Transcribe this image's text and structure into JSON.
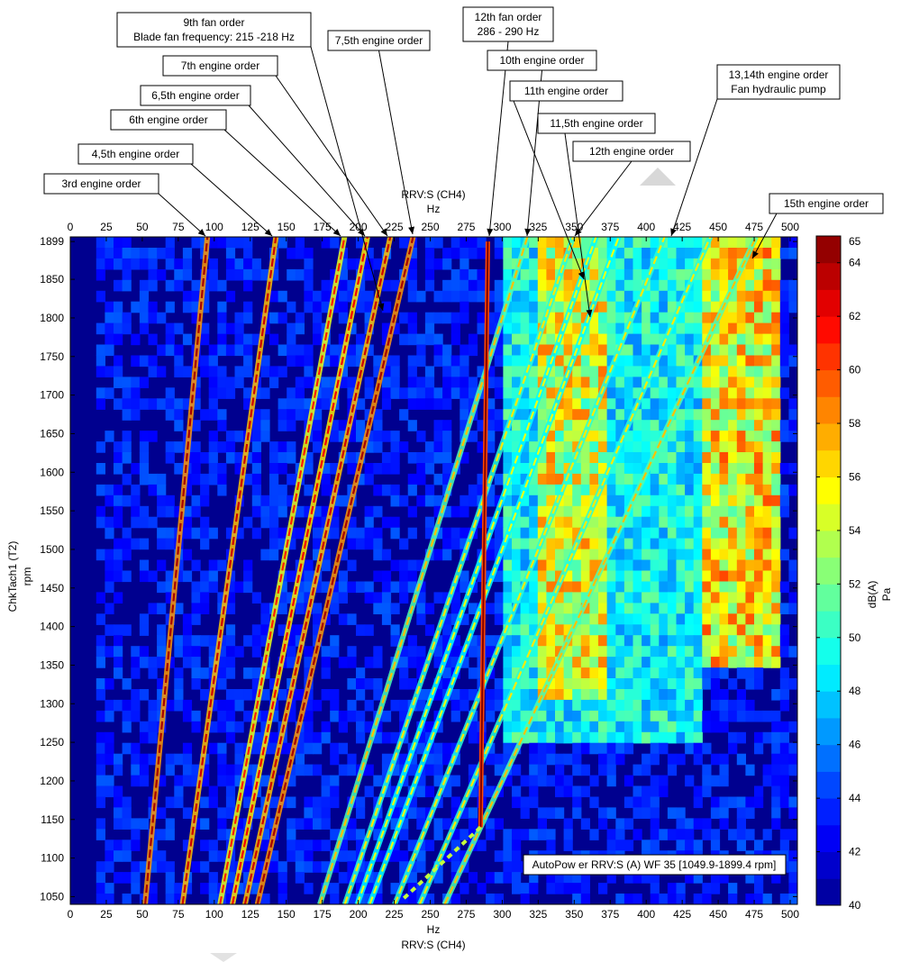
{
  "chart_data": {
    "type": "heatmap",
    "title": "",
    "x_axis": {
      "label": "Hz",
      "channel": "RRV:S (CH4)",
      "range": [
        0,
        505
      ],
      "ticks": [
        0,
        25,
        50,
        75,
        100,
        125,
        150,
        175,
        200,
        225,
        250,
        275,
        300,
        325,
        350,
        375,
        400,
        425,
        450,
        475,
        500
      ]
    },
    "y_axis": {
      "label_line1": "ChkTach1 (T2)",
      "label_line2": "rpm",
      "range": [
        1040,
        1905
      ],
      "ticks": [
        1050,
        1100,
        1150,
        1200,
        1250,
        1300,
        1350,
        1400,
        1450,
        1500,
        1550,
        1600,
        1650,
        1700,
        1750,
        1800,
        1850,
        1899
      ]
    },
    "colorbar": {
      "label": "dB(A)",
      "unit": "Pa",
      "range": [
        40,
        65
      ],
      "ticks": [
        40,
        42,
        44,
        46,
        48,
        50,
        52,
        54,
        56,
        58,
        60,
        62,
        64,
        65
      ]
    },
    "legend_text": "AutoPow er RRV:S (A) WF 35 [1049.9-1899.4 rpm]",
    "orders": [
      {
        "order": 3,
        "peak_db": 64
      },
      {
        "order": 4.5,
        "peak_db": 63
      },
      {
        "order": 6,
        "peak_db": 61
      },
      {
        "order": 6.5,
        "peak_db": 62
      },
      {
        "order": 7,
        "peak_db": 63
      },
      {
        "order": 7.5,
        "peak_db": 64
      },
      {
        "order": 10,
        "peak_db": 57
      },
      {
        "order": 11,
        "peak_db": 56
      },
      {
        "order": 11.5,
        "peak_db": 55
      },
      {
        "order": 12,
        "peak_db": 55
      },
      {
        "order": 13,
        "peak_db": 56
      },
      {
        "order": 14,
        "peak_db": 56
      },
      {
        "order": 15,
        "peak_db": 57
      }
    ],
    "fan_line": {
      "hz_low_rpm": [
        285,
        1140
      ],
      "hz_high_rpm": [
        290,
        1899
      ],
      "peak_db": 65
    },
    "hot_regions": [
      {
        "hz": [
          325,
          375
        ],
        "rpm": [
          1300,
          1899
        ],
        "level_db": 58
      },
      {
        "hz": [
          440,
          490
        ],
        "rpm": [
          1350,
          1899
        ],
        "level_db": 59
      }
    ],
    "annotations": [
      {
        "lines": [
          "9th fan order",
          "Blade fan frequency: 215 -218 Hz"
        ]
      },
      {
        "lines": [
          "7,5th engine order"
        ]
      },
      {
        "lines": [
          "7th engine order"
        ]
      },
      {
        "lines": [
          "6,5th engine order"
        ]
      },
      {
        "lines": [
          "6th engine order"
        ]
      },
      {
        "lines": [
          "4,5th engine order"
        ]
      },
      {
        "lines": [
          "3rd engine order"
        ]
      },
      {
        "lines": [
          "12th fan order",
          "286 - 290 Hz"
        ]
      },
      {
        "lines": [
          "10th engine order"
        ]
      },
      {
        "lines": [
          "11th engine order"
        ]
      },
      {
        "lines": [
          "11,5th engine order"
        ]
      },
      {
        "lines": [
          "12th engine order"
        ]
      },
      {
        "lines": [
          "13,14th engine order",
          "Fan hydraulic pump"
        ]
      },
      {
        "lines": [
          "15th engine order"
        ]
      }
    ]
  }
}
